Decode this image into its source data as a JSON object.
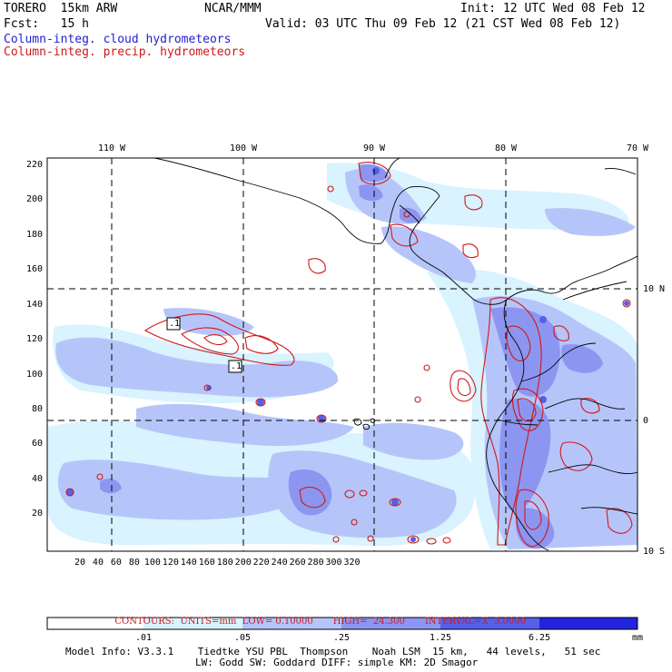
{
  "header": {
    "run_name": "TORERO  15km ARW",
    "org": "NCAR/MMM",
    "init": "Init: 12 UTC Wed 08 Feb 12",
    "fcst": "Fcst:   15 h",
    "valid": "Valid: 03 UTC Thu 09 Feb 12 (21 CST Wed 08 Feb 12)",
    "field1": "Column-integ. cloud hydrometeors",
    "field2": "Column-integ. precip. hydrometeors"
  },
  "colors": {
    "field1": "#1f1fd0",
    "field2": "#d01818",
    "cloud_shades": [
      "#ffffff",
      "#d9f3ff",
      "#b6c5f9",
      "#8c96f0",
      "#5560e8",
      "#2323e0"
    ]
  },
  "map": {
    "top_lon_labels": [
      "110 W",
      "100 W",
      "90 W",
      "80 W",
      "70 W"
    ],
    "right_lat_labels": [
      "10 N",
      "0",
      "10 S"
    ],
    "left_grid_labels": [
      "220",
      "200",
      "180",
      "160",
      "140",
      "120",
      "100",
      "80",
      "60",
      "40",
      "20"
    ],
    "bottom_grid_labels": [
      "20",
      "40",
      "60",
      "80",
      "100",
      "120",
      "140",
      "160",
      "180",
      "200",
      "220",
      "240",
      "260",
      "280",
      "300",
      "320"
    ],
    "contour_box_labels": [
      ".1",
      ".1"
    ]
  },
  "colorbar": {
    "labels": [
      ".01",
      ".05",
      ".25",
      "1.25",
      "6.25"
    ],
    "unit": "mm"
  },
  "contours": {
    "units": "CONTOURS:  UNITS=mm  LOW= 0.10000",
    "high": "HIGH=  24.300",
    "interval": "INTERVAL=X  3.0000"
  },
  "model_info": {
    "line1": "Model Info: V3.3.1    Tiedtke YSU PBL  Thompson    Noah LSM  15 km,   44 levels,   51 sec",
    "line2": "LW: Godd SW: Goddard DIFF: simple KM: 2D Smagor"
  }
}
